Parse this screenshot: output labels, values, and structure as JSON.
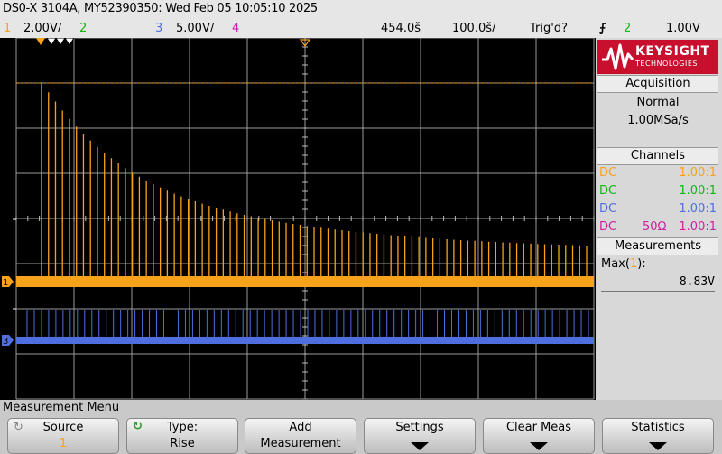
{
  "header": {
    "title": "DS0-X 3104A, MY52390350: Wed Feb 05 10:05:10 2025"
  },
  "channel_row": {
    "ch1_num": "1",
    "ch1_scale": "2.00V/",
    "ch2_num": "2",
    "ch3_num": "3",
    "ch3_scale": "5.00V/",
    "ch4_num": "4",
    "time_offset": "454.0š",
    "time_scale": "100.0š/",
    "trigger_status": "Trig'd?",
    "trigger_slope_icon": "falling-edge-icon",
    "trigger_source": "2",
    "trigger_level": "1.00V"
  },
  "colors": {
    "ch1": "#f7a21b",
    "ch2": "#12b612",
    "ch3": "#4f6fe0",
    "ch4": "#d020a0",
    "brand": "#c8102e"
  },
  "waveforms": {
    "ch1_peak_heights": [
      8.83,
      8.39,
      7.98,
      7.58,
      7.21,
      6.87,
      6.55,
      6.25,
      5.97,
      5.71,
      5.47,
      5.24,
      5.03,
      4.83,
      4.65,
      4.48,
      4.32,
      4.17,
      4.03,
      3.9,
      3.78,
      3.66,
      3.56,
      3.46,
      3.36,
      3.27,
      3.19,
      3.11,
      3.03,
      2.96,
      2.9,
      2.83,
      2.77,
      2.72,
      2.66,
      2.61,
      2.56,
      2.52,
      2.47,
      2.43,
      2.39,
      2.35,
      2.31,
      2.28,
      2.24,
      2.21,
      2.18,
      2.15,
      2.12,
      2.09,
      2.06,
      2.04,
      2.01,
      1.99,
      1.97,
      1.94,
      1.92,
      1.9,
      1.88,
      1.86,
      1.84,
      1.82,
      1.81,
      1.79,
      1.77,
      1.76,
      1.74,
      1.73,
      1.71,
      1.7,
      1.69,
      1.67,
      1.66,
      1.65,
      1.64,
      1.63,
      1.62,
      1.61,
      1.6
    ],
    "ch3_pulse_count": 79
  },
  "sidebar": {
    "brand_name": "KEYSIGHT",
    "brand_sub": "TECHNOLOGIES",
    "acquisition_title": "Acquisition",
    "acquisition_mode": "Normal",
    "sample_rate": "1.00MSa/s",
    "channels_title": "Channels",
    "channels": [
      {
        "coupling": "DC",
        "impedance": "",
        "probe": "1.00:1"
      },
      {
        "coupling": "DC",
        "impedance": "",
        "probe": "1.00:1"
      },
      {
        "coupling": "DC",
        "impedance": "",
        "probe": "1.00:1"
      },
      {
        "coupling": "DC",
        "impedance": "50Ω",
        "probe": "1.00:1"
      }
    ],
    "measurements_title": "Measurements",
    "meas_label_prefix": "Max(",
    "meas_channel": "1",
    "meas_label_suffix": "):",
    "meas_value": "8.83V"
  },
  "bottom_menu": {
    "title": "Measurement Menu",
    "softkeys": [
      {
        "line1": "Source",
        "line2": "1"
      },
      {
        "line1": "Type:",
        "line2": "Rise"
      },
      {
        "line1": "Add",
        "line2": "Measurement"
      },
      {
        "line1": "Settings",
        "line2": ""
      },
      {
        "line1": "Clear Meas",
        "line2": ""
      },
      {
        "line1": "Statistics",
        "line2": ""
      }
    ]
  }
}
